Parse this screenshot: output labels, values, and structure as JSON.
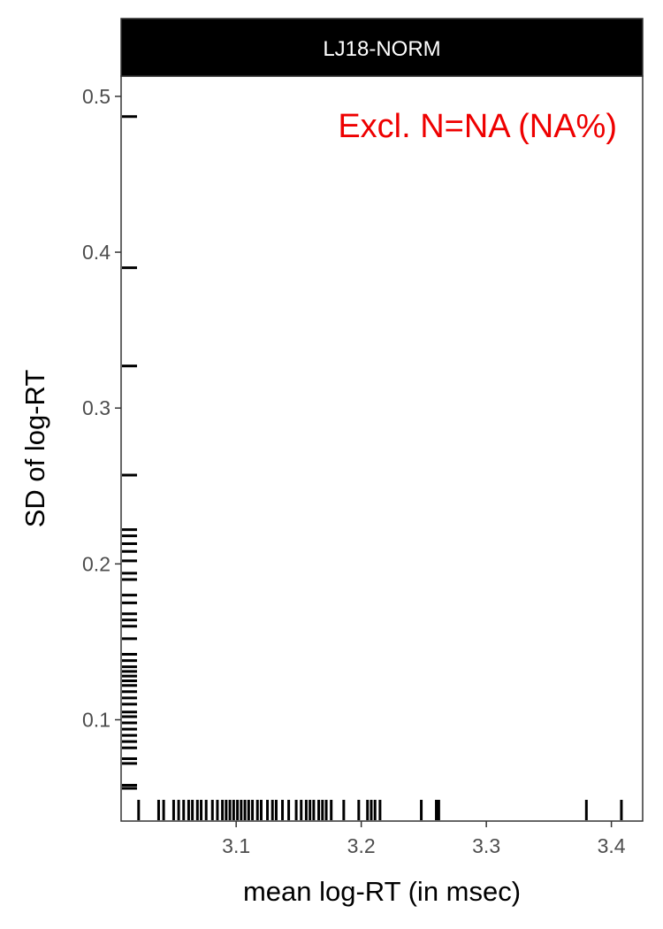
{
  "chart_data": {
    "type": "scatter",
    "facet_label": "LJ18-NORM",
    "annotation": "Excl. N=NA (NA%)",
    "xlabel": "mean log-RT (in msec)",
    "ylabel": "SD of log-RT",
    "xlim": [
      3.008,
      3.425
    ],
    "ylim": [
      0.035,
      0.513
    ],
    "x_ticks": [
      {
        "value": 3.1,
        "label": "3.1"
      },
      {
        "value": 3.2,
        "label": "3.2"
      },
      {
        "value": 3.3,
        "label": "3.3"
      },
      {
        "value": 3.4,
        "label": "3.4"
      }
    ],
    "y_ticks": [
      {
        "value": 0.1,
        "label": "0.1"
      },
      {
        "value": 0.2,
        "label": "0.2"
      },
      {
        "value": 0.3,
        "label": "0.3"
      },
      {
        "value": 0.4,
        "label": "0.4"
      },
      {
        "value": 0.5,
        "label": "0.5"
      }
    ],
    "rug_x": [
      3.022,
      3.038,
      3.042,
      3.05,
      3.054,
      3.058,
      3.062,
      3.065,
      3.069,
      3.072,
      3.076,
      3.081,
      3.085,
      3.089,
      3.092,
      3.095,
      3.098,
      3.101,
      3.104,
      3.107,
      3.11,
      3.113,
      3.117,
      3.12,
      3.125,
      3.129,
      3.132,
      3.137,
      3.142,
      3.148,
      3.152,
      3.156,
      3.159,
      3.162,
      3.166,
      3.169,
      3.172,
      3.176,
      3.186,
      3.198,
      3.205,
      3.208,
      3.211,
      3.215,
      3.248,
      3.26,
      3.262,
      3.38,
      3.408
    ],
    "rug_y": [
      0.056,
      0.058,
      0.072,
      0.075,
      0.082,
      0.086,
      0.09,
      0.094,
      0.098,
      0.102,
      0.105,
      0.11,
      0.114,
      0.118,
      0.122,
      0.125,
      0.128,
      0.131,
      0.134,
      0.138,
      0.142,
      0.152,
      0.16,
      0.164,
      0.168,
      0.175,
      0.18,
      0.19,
      0.194,
      0.202,
      0.208,
      0.213,
      0.218,
      0.222,
      0.257,
      0.327,
      0.39,
      0.487
    ],
    "colors": {
      "strip_bg": "#000000",
      "strip_text": "#ffffff",
      "annotation": "#ee0000",
      "rug": "#000000",
      "panel_border": "#333333",
      "tick_text": "#4d4d4d"
    }
  }
}
